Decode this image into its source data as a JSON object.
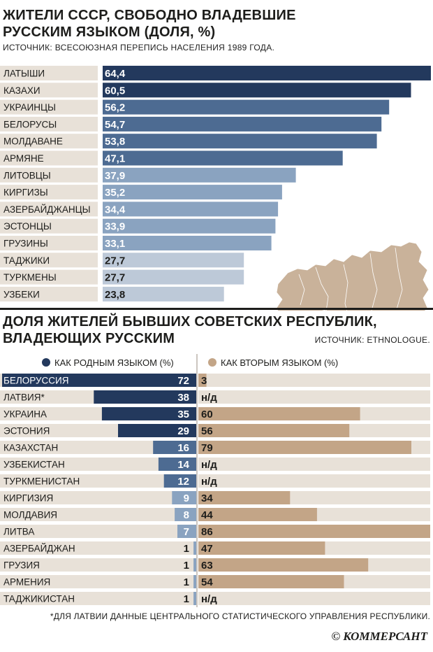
{
  "chart1": {
    "title_line1": "ЖИТЕЛИ СССР, СВОБОДНО ВЛАДЕВШИЕ",
    "title_line2": "РУССКИМ ЯЗЫКОМ (ДОЛЯ, %)",
    "source": "ИСТОЧНИК: ВСЕСОЮЗНАЯ ПЕРЕПИСЬ НАСЕЛЕНИЯ 1989 ГОДА."
  },
  "chart2": {
    "title_line1": "ДОЛЯ ЖИТЕЛЕЙ БЫВШИХ СОВЕТСКИХ РЕСПУБЛИК,",
    "title_line2": "ВЛАДЕЮЩИХ РУССКИМ",
    "source": "ИСТОЧНИК: ETHNOLOGUE."
  },
  "footnote": "*ДЛЯ ЛАТВИИ ДАННЫЕ ЦЕНТРАЛЬНОГО СТАТИСТИЧЕСКОГО УПРАВЛЕНИЯ РЕСПУБЛИКИ.",
  "brand": "© КОММЕРСАНТ",
  "colors": {
    "dark_blue": "#23395d",
    "mid_blue": "#4d6b92",
    "light_blue": "#8aa3c0",
    "pale_blue": "#bdc9d8",
    "row_stripe": "#e8e1d8",
    "beige_bar": "#c3a587",
    "map": "#c9b29a"
  },
  "chart_data": [
    {
      "type": "bar",
      "title": "ЖИТЕЛИ СССР, СВОБОДНО ВЛАДЕВШИЕ РУССКИМ ЯЗЫКОМ (ДОЛЯ, %)",
      "categories": [
        "ЛАТЫШИ",
        "КАЗАХИ",
        "УКРАИНЦЫ",
        "БЕЛОРУСЫ",
        "МОЛДАВАНЕ",
        "АРМЯНЕ",
        "ЛИТОВЦЫ",
        "КИРГИЗЫ",
        "АЗЕРБАЙДЖАНЦЫ",
        "ЭСТОНЦЫ",
        "ГРУЗИНЫ",
        "ТАДЖИКИ",
        "ТУРКМЕНЫ",
        "УЗБЕКИ"
      ],
      "values": [
        64.4,
        60.5,
        56.2,
        54.7,
        53.8,
        47.1,
        37.9,
        35.2,
        34.4,
        33.9,
        33.1,
        27.7,
        27.7,
        23.8
      ],
      "labels": [
        "64,4",
        "60,5",
        "56,2",
        "54,7",
        "53,8",
        "47,1",
        "37,9",
        "35,2",
        "34,4",
        "33,9",
        "33,1",
        "27,7",
        "27,7",
        "23,8"
      ],
      "xlim": [
        0,
        64.4
      ]
    },
    {
      "type": "bar",
      "title": "ДОЛЯ ЖИТЕЛЕЙ БЫВШИХ СОВЕТСКИХ РЕСПУБЛИК, ВЛАДЕЮЩИХ РУССКИМ",
      "categories": [
        "БЕЛОРУССИЯ",
        "ЛАТВИЯ*",
        "УКРАИНА",
        "ЭСТОНИЯ",
        "КАЗАХСТАН",
        "УЗБЕКИСТАН",
        "ТУРКМЕНИСТАН",
        "КИРГИЗИЯ",
        "МОЛДАВИЯ",
        "ЛИТВА",
        "АЗЕРБАЙДЖАН",
        "ГРУЗИЯ",
        "АРМЕНИЯ",
        "ТАДЖИКИСТАН"
      ],
      "series": [
        {
          "name": "КАК РОДНЫМ ЯЗЫКОМ (%)",
          "values": [
            72,
            38,
            35,
            29,
            16,
            14,
            12,
            9,
            8,
            7,
            1,
            1,
            1,
            1
          ]
        },
        {
          "name": "КАК ВТОРЫМ ЯЗЫКОМ (%)",
          "values": [
            3,
            null,
            60,
            56,
            79,
            null,
            null,
            34,
            44,
            86,
            47,
            63,
            54,
            null
          ],
          "missing_label": "н/д"
        }
      ]
    }
  ]
}
